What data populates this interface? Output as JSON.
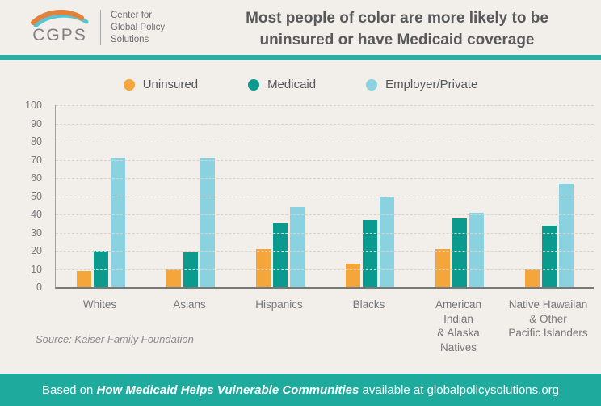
{
  "header": {
    "logo": {
      "acronym": "CGPS",
      "org": "Center for\nGlobal Policy\nSolutions"
    },
    "title": "Most people of color are more likely to be\nuninsured or have Medicaid coverage"
  },
  "chart_data": {
    "type": "bar",
    "categories": [
      "Whites",
      "Asians",
      "Hispanics",
      "Blacks",
      "American\nIndian\n& Alaska\nNatives",
      "Native Hawaiian\n& Other\nPacific Islanders"
    ],
    "series": [
      {
        "name": "Uninsured",
        "color": "#F5A63B",
        "values": [
          9,
          10,
          21,
          13,
          21,
          10
        ]
      },
      {
        "name": "Medicaid",
        "color": "#0A9A8E",
        "values": [
          20,
          19,
          35,
          37,
          38,
          34
        ]
      },
      {
        "name": "Employer/Private",
        "color": "#8BD2E1",
        "values": [
          71,
          71,
          44,
          50,
          41,
          57
        ]
      }
    ],
    "title": "Most people of color are more likely to be uninsured or have Medicaid coverage",
    "xlabel": "",
    "ylabel": "",
    "ylim": [
      0,
      100
    ],
    "ytick_step": 10,
    "grid": "horizontal-dashed",
    "legend_position": "top"
  },
  "colors": {
    "background": "#F2EEE9",
    "header_band": "#2BAEA3",
    "footer_background": "#1EAA9C",
    "title_text": "#58595B",
    "axis_text": "#77787B"
  },
  "source_note": "Source: Kaiser Family Foundation",
  "footer": {
    "prefix": "Based on ",
    "work_title": "How Medicaid Helps Vulnerable Communities",
    "suffix": " available at globalpolicysolutions.org"
  }
}
